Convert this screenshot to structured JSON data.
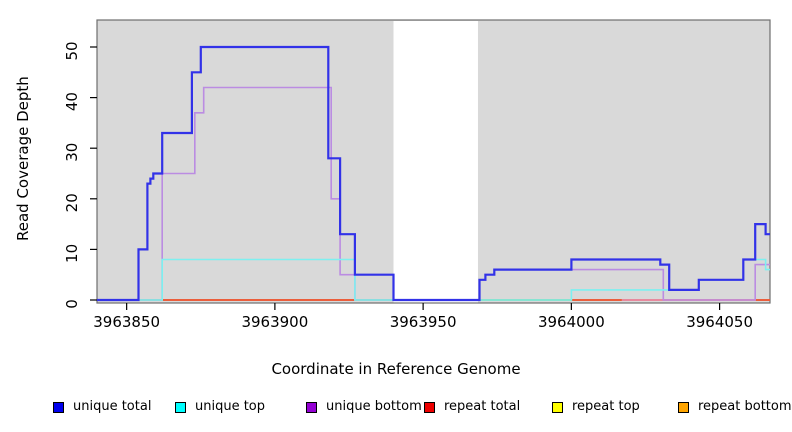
{
  "chart_data": {
    "type": "line",
    "subtype": "step-coverage",
    "title": "",
    "xlabel": "Coordinate in Reference Genome",
    "ylabel": "Read Coverage Depth",
    "xlim": [
      3963840,
      3964067
    ],
    "ylim": [
      0,
      55
    ],
    "xticks": [
      3963850,
      3963900,
      3963950,
      3964000,
      3964050
    ],
    "yticks": [
      0,
      10,
      20,
      30,
      40,
      50
    ],
    "grid": false,
    "legend_position": "bottom",
    "plot_bg_color": "#d9d9d9",
    "frame_color": "#6e6e6e",
    "gap_region": {
      "start": 3963940,
      "end": 3963968.5,
      "color": "#ffffff"
    },
    "series": [
      {
        "name": "unique total",
        "line_color": "#3232e8",
        "legend_color": "#0000ee",
        "line_width": 2.2,
        "points": [
          [
            3963840,
            0
          ],
          [
            3963854,
            10
          ],
          [
            3963857,
            23
          ],
          [
            3963858,
            24
          ],
          [
            3963859,
            25
          ],
          [
            3963862,
            33
          ],
          [
            3963872,
            45
          ],
          [
            3963875,
            50
          ],
          [
            3963918,
            28
          ],
          [
            3963922,
            13
          ],
          [
            3963927,
            5
          ],
          [
            3963940,
            0
          ],
          [
            3963969,
            4
          ],
          [
            3963971,
            5
          ],
          [
            3963974,
            6
          ],
          [
            3964000,
            8
          ],
          [
            3964030,
            7
          ],
          [
            3964033,
            2
          ],
          [
            3964043,
            4
          ],
          [
            3964058,
            8
          ],
          [
            3964062,
            15
          ],
          [
            3964065.5,
            13
          ]
        ]
      },
      {
        "name": "unique top",
        "line_color": "#7df0f0",
        "legend_color": "#00ffff",
        "line_width": 1.6,
        "points": [
          [
            3963840,
            0
          ],
          [
            3963862,
            8
          ],
          [
            3963927,
            0
          ],
          [
            3964000,
            2
          ],
          [
            3964043,
            4
          ],
          [
            3964058,
            8
          ],
          [
            3964065.5,
            6
          ]
        ]
      },
      {
        "name": "unique bottom",
        "line_color": "#bb8ce2",
        "legend_color": "#9400d3",
        "line_width": 1.6,
        "points": [
          [
            3963840,
            0
          ],
          [
            3963862,
            25
          ],
          [
            3963873,
            37
          ],
          [
            3963876,
            42
          ],
          [
            3963919,
            20
          ],
          [
            3963922,
            5
          ],
          [
            3963927,
            0
          ],
          [
            3963969,
            4
          ],
          [
            3963971,
            5
          ],
          [
            3963974,
            6
          ],
          [
            3964031,
            0
          ],
          [
            3964062,
            7
          ]
        ]
      },
      {
        "name": "repeat total",
        "line_color": "#e83a3a",
        "legend_color": "#ee0000",
        "line_width": 1.4,
        "points": [
          [
            3963840,
            0
          ]
        ]
      },
      {
        "name": "repeat top",
        "line_color": "#f2ef45",
        "legend_color": "#ffff00",
        "line_width": 1.4,
        "points": [
          [
            3963840,
            0
          ]
        ]
      },
      {
        "name": "repeat bottom",
        "line_color": "#ff9512",
        "legend_color": "#ffa500",
        "line_width": 1.8,
        "points": [
          [
            3963840,
            0
          ]
        ]
      }
    ],
    "baseline_overlay_segments": [
      {
        "color": "#8fd98f",
        "from": 3963854,
        "to": 3963862
      },
      {
        "color": "#8fd98f",
        "from": 3963927,
        "to": 3963940
      },
      {
        "color": "#8fd98f",
        "from": 3963969,
        "to": 3964000
      },
      {
        "color": "#e68aab",
        "from": 3964017,
        "to": 3964062
      }
    ]
  }
}
